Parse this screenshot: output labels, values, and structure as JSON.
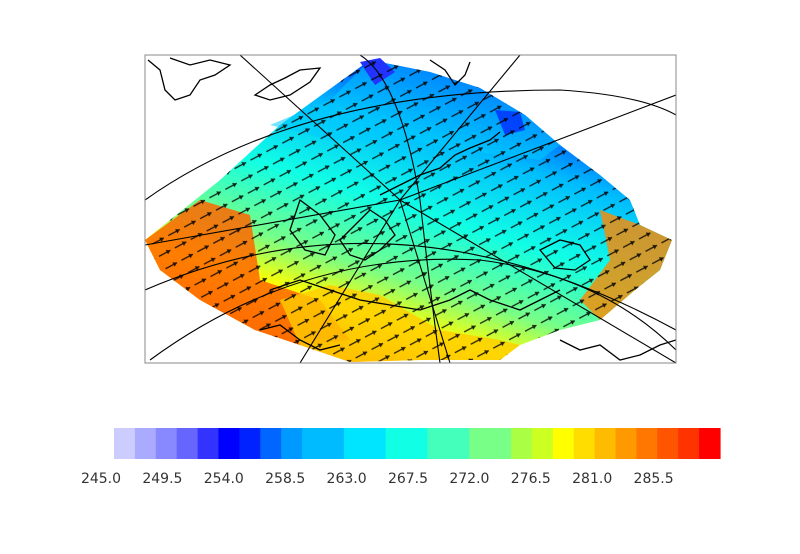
{
  "map": {
    "projection": "polar-stereographic",
    "field": "temperature",
    "overlay": "wind-vectors",
    "land_outline_color": "#000000",
    "frame_color": "#888888"
  },
  "colorbar": {
    "orientation": "horizontal",
    "min": 245.0,
    "max": 290.0,
    "tick_labels": [
      "245.0",
      "249.5",
      "254.0",
      "258.5",
      "263.0",
      "267.5",
      "272.0",
      "276.5",
      "281.0",
      "285.5"
    ],
    "colors": [
      "#ccccff",
      "#aaaaff",
      "#8888ff",
      "#6666ff",
      "#3333ff",
      "#0000ff",
      "#0022ff",
      "#0066ff",
      "#0099ff",
      "#00bbff",
      "#00bbff",
      "#00e5ff",
      "#00e5ff",
      "#11ffe5",
      "#11ffe5",
      "#44ffbb",
      "#44ffbb",
      "#77ff88",
      "#77ff88",
      "#aaff44",
      "#ccff22",
      "#ffff00",
      "#ffdd00",
      "#ffbb00",
      "#ff9900",
      "#ff7700",
      "#ff5500",
      "#ff3300",
      "#ff0000"
    ]
  }
}
